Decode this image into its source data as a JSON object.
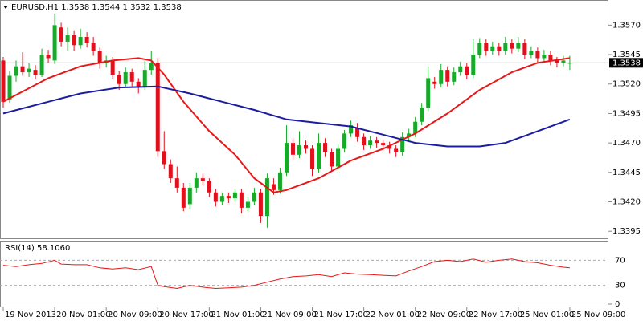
{
  "chart_data": {
    "type": "candlestick",
    "title": "EURUSD,H1  1.3538 1.3544 1.3532 1.3538",
    "bull_color": "#18a82a",
    "bear_color": "#e0101c",
    "candles": [
      [
        1.354,
        1.3543,
        1.35,
        1.3505
      ],
      [
        1.3507,
        1.3531,
        1.3504,
        1.3527
      ],
      [
        1.3527,
        1.354,
        1.3522,
        1.3535
      ],
      [
        1.3535,
        1.3547,
        1.3527,
        1.353
      ],
      [
        1.353,
        1.3538,
        1.3526,
        1.3533
      ],
      [
        1.3532,
        1.3536,
        1.3524,
        1.3528
      ],
      [
        1.3528,
        1.355,
        1.3526,
        1.3545
      ],
      [
        1.3545,
        1.3549,
        1.3538,
        1.3542
      ],
      [
        1.354,
        1.358,
        1.3537,
        1.357
      ],
      [
        1.3568,
        1.3572,
        1.3552,
        1.3556
      ],
      [
        1.3556,
        1.3568,
        1.3548,
        1.3562
      ],
      [
        1.3562,
        1.3565,
        1.3548,
        1.3553
      ],
      [
        1.3553,
        1.3567,
        1.355,
        1.356
      ],
      [
        1.356,
        1.3564,
        1.3551,
        1.3555
      ],
      [
        1.3555,
        1.356,
        1.3544,
        1.3548
      ],
      [
        1.3548,
        1.3551,
        1.3533,
        1.3538
      ],
      [
        1.3538,
        1.3544,
        1.3534,
        1.354
      ],
      [
        1.354,
        1.3543,
        1.3524,
        1.3528
      ],
      [
        1.3528,
        1.3531,
        1.3515,
        1.352
      ],
      [
        1.352,
        1.3534,
        1.3517,
        1.353
      ],
      [
        1.353,
        1.3533,
        1.3518,
        1.3522
      ],
      [
        1.3522,
        1.3525,
        1.3512,
        1.3518
      ],
      [
        1.3518,
        1.354,
        1.3515,
        1.3532
      ],
      [
        1.3532,
        1.3548,
        1.3528,
        1.3538
      ],
      [
        1.3538,
        1.3542,
        1.3458,
        1.3463
      ],
      [
        1.3463,
        1.348,
        1.3448,
        1.3452
      ],
      [
        1.3452,
        1.3456,
        1.3436,
        1.344
      ],
      [
        1.344,
        1.345,
        1.3428,
        1.3432
      ],
      [
        1.3432,
        1.3436,
        1.3412,
        1.3415
      ],
      [
        1.3418,
        1.3436,
        1.3414,
        1.3432
      ],
      [
        1.3432,
        1.3445,
        1.3428,
        1.344
      ],
      [
        1.344,
        1.3444,
        1.3434,
        1.3438
      ],
      [
        1.3438,
        1.344,
        1.3424,
        1.3428
      ],
      [
        1.3428,
        1.3431,
        1.3416,
        1.342
      ],
      [
        1.342,
        1.3428,
        1.3417,
        1.3425
      ],
      [
        1.3425,
        1.3428,
        1.3419,
        1.3423
      ],
      [
        1.3423,
        1.3431,
        1.342,
        1.3428
      ],
      [
        1.3428,
        1.3431,
        1.341,
        1.3415
      ],
      [
        1.3415,
        1.3424,
        1.3412,
        1.342
      ],
      [
        1.342,
        1.3432,
        1.3417,
        1.3428
      ],
      [
        1.3428,
        1.3431,
        1.3402,
        1.3408
      ],
      [
        1.3408,
        1.3444,
        1.3398,
        1.344
      ],
      [
        1.3435,
        1.344,
        1.3426,
        1.343
      ],
      [
        1.343,
        1.3449,
        1.3427,
        1.3445
      ],
      [
        1.3445,
        1.3485,
        1.3442,
        1.347
      ],
      [
        1.347,
        1.3474,
        1.3456,
        1.346
      ],
      [
        1.346,
        1.348,
        1.3457,
        1.3468
      ],
      [
        1.3468,
        1.3472,
        1.3461,
        1.3465
      ],
      [
        1.3465,
        1.3468,
        1.3442,
        1.3448
      ],
      [
        1.3448,
        1.3478,
        1.3445,
        1.347
      ],
      [
        1.347,
        1.3474,
        1.3458,
        1.3462
      ],
      [
        1.3462,
        1.3465,
        1.3446,
        1.345
      ],
      [
        1.345,
        1.3469,
        1.3447,
        1.3465
      ],
      [
        1.3465,
        1.3481,
        1.3462,
        1.3478
      ],
      [
        1.3478,
        1.3489,
        1.3475,
        1.3485
      ],
      [
        1.3483,
        1.3487,
        1.3471,
        1.3475
      ],
      [
        1.3475,
        1.3478,
        1.3464,
        1.3468
      ],
      [
        1.3468,
        1.3476,
        1.3465,
        1.3472
      ],
      [
        1.3472,
        1.3475,
        1.3466,
        1.347
      ],
      [
        1.347,
        1.3473,
        1.3464,
        1.3468
      ],
      [
        1.3468,
        1.3471,
        1.3461,
        1.3465
      ],
      [
        1.3465,
        1.3468,
        1.3458,
        1.3462
      ],
      [
        1.3462,
        1.3479,
        1.3459,
        1.3475
      ],
      [
        1.3475,
        1.3482,
        1.3471,
        1.3478
      ],
      [
        1.3478,
        1.3492,
        1.3475,
        1.3488
      ],
      [
        1.3488,
        1.3504,
        1.3485,
        1.35
      ],
      [
        1.35,
        1.3535,
        1.3497,
        1.3525
      ],
      [
        1.3522,
        1.3526,
        1.3516,
        1.352
      ],
      [
        1.352,
        1.3537,
        1.3517,
        1.3532
      ],
      [
        1.3532,
        1.3535,
        1.3518,
        1.3522
      ],
      [
        1.3522,
        1.3534,
        1.3519,
        1.353
      ],
      [
        1.353,
        1.3539,
        1.3527,
        1.3535
      ],
      [
        1.3535,
        1.3538,
        1.3524,
        1.3528
      ],
      [
        1.3528,
        1.3558,
        1.3525,
        1.3545
      ],
      [
        1.3545,
        1.3559,
        1.3542,
        1.3555
      ],
      [
        1.3555,
        1.3558,
        1.3544,
        1.3548
      ],
      [
        1.3548,
        1.3556,
        1.3545,
        1.3552
      ],
      [
        1.3552,
        1.3555,
        1.3544,
        1.3548
      ],
      [
        1.3548,
        1.356,
        1.3545,
        1.3555
      ],
      [
        1.3555,
        1.3558,
        1.3546,
        1.355
      ],
      [
        1.355,
        1.356,
        1.3547,
        1.3555
      ],
      [
        1.3555,
        1.3558,
        1.3541,
        1.3545
      ],
      [
        1.3545,
        1.3552,
        1.3542,
        1.3548
      ],
      [
        1.3548,
        1.3551,
        1.3538,
        1.3542
      ],
      [
        1.3542,
        1.3549,
        1.3539,
        1.3545
      ],
      [
        1.3545,
        1.3548,
        1.3536,
        1.354
      ],
      [
        1.354,
        1.3543,
        1.3534,
        1.3538
      ],
      [
        1.3538,
        1.3544,
        1.3535,
        1.354
      ],
      [
        1.3538,
        1.3544,
        1.3532,
        1.3538
      ]
    ],
    "series": [
      {
        "color": "#e81818",
        "x": [
          0,
          7,
          12,
          17,
          21,
          23,
          25,
          28,
          32,
          36,
          39,
          42,
          44,
          49,
          54,
          59,
          64,
          69,
          74,
          79,
          83,
          88
        ],
        "values": [
          1.3505,
          1.3525,
          1.3535,
          1.354,
          1.3542,
          1.354,
          1.3528,
          1.3505,
          1.348,
          1.346,
          1.344,
          1.3428,
          1.343,
          1.344,
          1.3455,
          1.3465,
          1.3478,
          1.3495,
          1.3515,
          1.353,
          1.3538,
          1.3542
        ]
      },
      {
        "color": "#1c1ca0",
        "x": [
          0,
          7,
          12,
          18,
          24,
          29,
          34,
          39,
          44,
          49,
          54,
          59,
          64,
          69,
          74,
          78,
          82,
          88
        ],
        "values": [
          1.3495,
          1.3505,
          1.3512,
          1.3517,
          1.3518,
          1.3512,
          1.3505,
          1.3498,
          1.349,
          1.3487,
          1.3484,
          1.3477,
          1.347,
          1.3467,
          1.3467,
          1.347,
          1.3478,
          1.349
        ]
      }
    ],
    "last_price": 1.3538,
    "xlim": [
      -0.5,
      94
    ],
    "ylim": [
      1.3389,
      1.359
    ],
    "yticks": [
      {
        "value": 1.357,
        "label": "1.3570"
      },
      {
        "value": 1.3545,
        "label": "1.3545"
      },
      {
        "value": 1.352,
        "label": "1.3520"
      },
      {
        "value": 1.3495,
        "label": "1.3495"
      },
      {
        "value": 1.347,
        "label": "1.3470"
      },
      {
        "value": 1.3445,
        "label": "1.3445"
      },
      {
        "value": 1.342,
        "label": "1.3420"
      },
      {
        "value": 1.3395,
        "label": "1.3395"
      }
    ],
    "xticks": [
      {
        "value": 0,
        "label": "19 Nov 2013"
      },
      {
        "value": 8,
        "label": "20 Nov 01:00"
      },
      {
        "value": 16,
        "label": "20 Nov 09:00"
      },
      {
        "value": 24,
        "label": "20 Nov 17:00"
      },
      {
        "value": 32,
        "label": "21 Nov 01:00"
      },
      {
        "value": 40,
        "label": "21 Nov 09:00"
      },
      {
        "value": 48,
        "label": "21 Nov 17:00"
      },
      {
        "value": 56,
        "label": "22 Nov 01:00"
      },
      {
        "value": 64,
        "label": "22 Nov 09:00"
      },
      {
        "value": 72,
        "label": "22 Nov 17:00"
      },
      {
        "value": 80,
        "label": "25 Nov 01:00"
      },
      {
        "value": 88,
        "label": "25 Nov 09:00"
      }
    ],
    "rsi": {
      "title": "RSI(14) 58.1060",
      "color": "#e81818",
      "ylim": [
        0,
        100
      ],
      "yticks": [
        70,
        30,
        0
      ],
      "x": [
        0,
        2,
        4,
        6,
        8,
        9,
        11,
        13,
        15,
        17,
        19,
        21,
        23,
        24,
        25,
        27,
        29,
        31,
        33,
        35,
        37,
        39,
        41,
        43,
        45,
        47,
        49,
        51,
        53,
        55,
        57,
        59,
        61,
        63,
        65,
        67,
        69,
        71,
        73,
        75,
        77,
        79,
        81,
        83,
        85,
        87,
        88
      ],
      "values": [
        62,
        60,
        63,
        65,
        70,
        64,
        63,
        63,
        58,
        56,
        58,
        55,
        60,
        30,
        28,
        25,
        30,
        27,
        25,
        26,
        27,
        30,
        35,
        40,
        44,
        45,
        47,
        44,
        50,
        48,
        47,
        46,
        45,
        53,
        60,
        68,
        70,
        68,
        72,
        67,
        70,
        72,
        68,
        66,
        62,
        59,
        58
      ]
    }
  }
}
